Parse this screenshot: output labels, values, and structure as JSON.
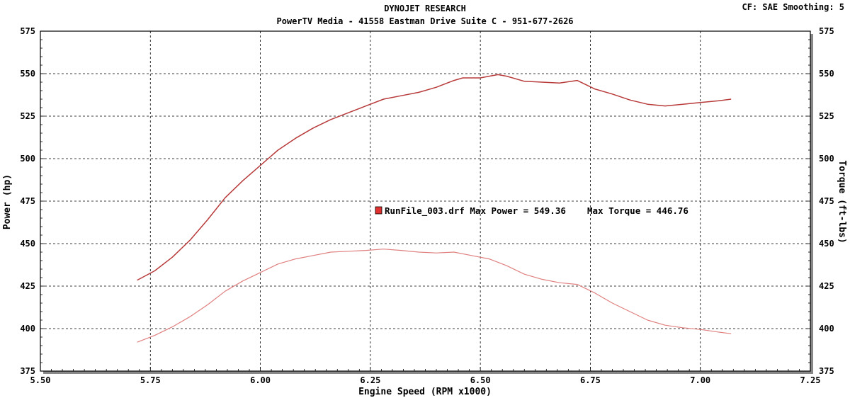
{
  "header": {
    "title": "DYNOJET RESEARCH",
    "subtitle": "PowerTV Media - 41558 Eastman Drive Suite C - 951-677-2626",
    "correction": "CF: SAE  Smoothing: 5"
  },
  "chart_data": {
    "type": "line",
    "xlabel": "Engine Speed (RPM x1000)",
    "ylabel": "Power (hp)",
    "y2label": "Torque (ft-lbs)",
    "xlim": [
      5.5,
      7.25
    ],
    "ylim": [
      375,
      575
    ],
    "y2lim": [
      375,
      575
    ],
    "x_ticks": [
      "5.50",
      "5.75",
      "6.00",
      "6.25",
      "6.50",
      "6.75",
      "7.00",
      "7.25"
    ],
    "y_ticks": [
      "375",
      "400",
      "425",
      "450",
      "475",
      "500",
      "525",
      "550",
      "575"
    ],
    "y2_ticks": [
      "375",
      "400",
      "425",
      "450",
      "475",
      "500",
      "525",
      "550",
      "575"
    ],
    "grid": true,
    "legend": {
      "placement": "center",
      "text": "RunFile_003.drf Max Power = 549.36    Max Torque = 446.76",
      "swatch_color": "#e03030"
    },
    "series": [
      {
        "axis": "left",
        "color": "#b83a3a",
        "x": [
          5.72,
          5.76,
          5.8,
          5.84,
          5.88,
          5.92,
          5.96,
          6.0,
          6.04,
          6.08,
          6.12,
          6.16,
          6.2,
          6.24,
          6.28,
          6.32,
          6.36,
          6.4,
          6.44,
          6.46,
          6.5,
          6.52,
          6.54,
          6.56,
          6.6,
          6.64,
          6.68,
          6.72,
          6.76,
          6.8,
          6.84,
          6.88,
          6.92,
          6.96,
          7.0,
          7.04,
          7.07
        ],
        "values": [
          428.5,
          434,
          442,
          452,
          464,
          477,
          487,
          496,
          505,
          512,
          518,
          523,
          527,
          531,
          535,
          537,
          539,
          542,
          546,
          547.5,
          547.5,
          548.5,
          549.4,
          548.5,
          545.5,
          545,
          544.5,
          546,
          541,
          538,
          534.5,
          532,
          531,
          532,
          533,
          534,
          535
        ]
      },
      {
        "axis": "right",
        "color": "#e08080",
        "x": [
          5.72,
          5.76,
          5.8,
          5.84,
          5.88,
          5.92,
          5.96,
          6.0,
          6.04,
          6.08,
          6.12,
          6.16,
          6.2,
          6.24,
          6.28,
          6.32,
          6.36,
          6.4,
          6.44,
          6.48,
          6.52,
          6.56,
          6.6,
          6.64,
          6.68,
          6.72,
          6.76,
          6.8,
          6.84,
          6.88,
          6.92,
          6.96,
          7.0,
          7.04,
          7.07
        ],
        "values": [
          392,
          396,
          401,
          407,
          414,
          422,
          428,
          433,
          438,
          441,
          443,
          445,
          445.5,
          446,
          446.8,
          446,
          445,
          444.5,
          445,
          443,
          441,
          437,
          432,
          429,
          427,
          426,
          421,
          415,
          410,
          405,
          402,
          400.5,
          399.5,
          398,
          397
        ]
      }
    ]
  }
}
